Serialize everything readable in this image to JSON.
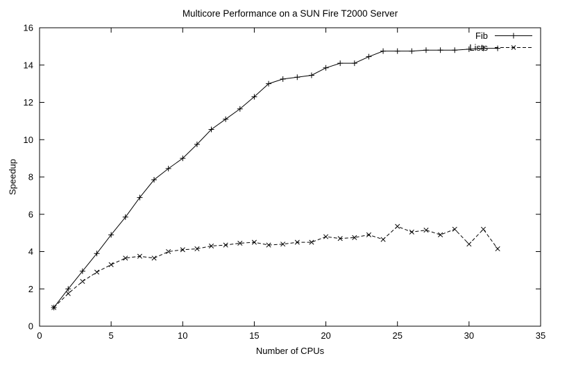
{
  "chart_data": {
    "type": "line",
    "title": "Multicore Performance on a SUN Fire T2000 Server",
    "xlabel": "Number of CPUs",
    "ylabel": "Speedup",
    "xlim": [
      0,
      35
    ],
    "ylim": [
      0,
      16
    ],
    "xticks": [
      0,
      5,
      10,
      15,
      20,
      25,
      30,
      35
    ],
    "yticks": [
      0,
      2,
      4,
      6,
      8,
      10,
      12,
      14,
      16
    ],
    "grid": false,
    "legend_position": "top-right",
    "axis_color": "#000000",
    "x": [
      1,
      2,
      3,
      4,
      5,
      6,
      7,
      8,
      9,
      10,
      11,
      12,
      13,
      14,
      15,
      16,
      17,
      18,
      19,
      20,
      21,
      22,
      23,
      24,
      25,
      26,
      27,
      28,
      29,
      30,
      31,
      32
    ],
    "series": [
      {
        "name": "Fib",
        "marker": "plus",
        "line_style": "solid",
        "color": "#000000",
        "values": [
          1.0,
          2.0,
          2.95,
          3.9,
          4.9,
          5.85,
          6.9,
          7.85,
          8.45,
          9.0,
          9.75,
          10.55,
          11.1,
          11.65,
          12.3,
          13.0,
          13.25,
          13.35,
          13.45,
          13.85,
          14.1,
          14.1,
          14.45,
          14.75,
          14.75,
          14.75,
          14.8,
          14.8,
          14.8,
          14.85,
          14.9,
          14.9
        ]
      },
      {
        "name": "Lists",
        "marker": "cross",
        "line_style": "dashed",
        "color": "#000000",
        "values": [
          1.0,
          1.75,
          2.4,
          2.9,
          3.3,
          3.65,
          3.75,
          3.65,
          4.0,
          4.1,
          4.15,
          4.3,
          4.35,
          4.45,
          4.5,
          4.35,
          4.4,
          4.5,
          4.5,
          4.8,
          4.7,
          4.75,
          4.9,
          4.65,
          5.35,
          5.05,
          5.15,
          4.9,
          5.2,
          4.4,
          5.2,
          4.15
        ]
      }
    ]
  }
}
